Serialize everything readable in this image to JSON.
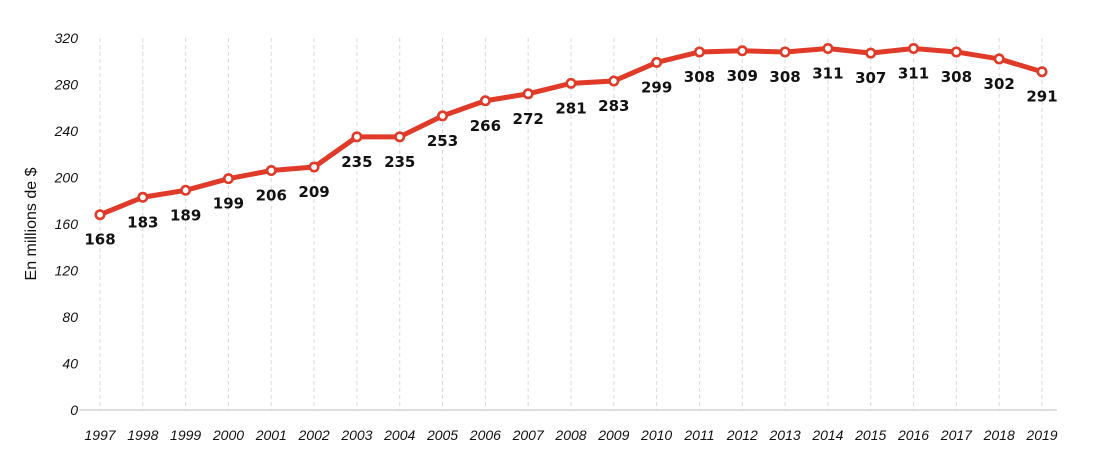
{
  "chart_data": {
    "type": "line",
    "title": "",
    "xlabel": "",
    "ylabel": "En millions de $",
    "ylim": [
      0,
      320
    ],
    "yticks": [
      0,
      40,
      80,
      120,
      160,
      200,
      240,
      280,
      320
    ],
    "grid": "vertical-dashed",
    "legend": "none",
    "line_color": "#e03a28",
    "categories": [
      "1997",
      "1998",
      "1999",
      "2000",
      "2001",
      "2002",
      "2003",
      "2004",
      "2005",
      "2006",
      "2007",
      "2008",
      "2009",
      "2010",
      "2011",
      "2012",
      "2013",
      "2014",
      "2015",
      "2016",
      "2017",
      "2018",
      "2019"
    ],
    "series": [
      {
        "values": [
          168,
          183,
          189,
          199,
          206,
          209,
          235,
          235,
          253,
          266,
          272,
          281,
          283,
          299,
          308,
          309,
          308,
          311,
          307,
          311,
          308,
          302,
          291
        ],
        "labels": [
          "168",
          "183",
          "189",
          "199",
          "206",
          "209",
          "235",
          "235",
          "253",
          "266",
          "272",
          "281",
          "283",
          "299",
          "308",
          "309",
          "308",
          "311",
          "307",
          "311",
          "308",
          "302",
          "291"
        ]
      }
    ]
  }
}
